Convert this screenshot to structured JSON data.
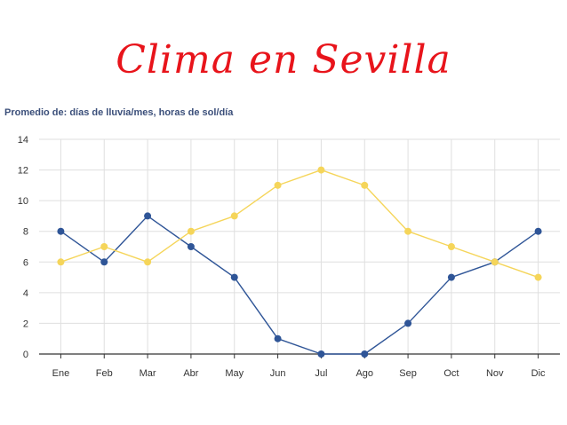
{
  "page": {
    "title": "Clima en Sevilla"
  },
  "colors": {
    "title": "#e8141b",
    "series_blue": "#2f5597",
    "series_yellow": "#f5d55a",
    "grid": "#dfdfdf",
    "axis": "#333333"
  },
  "chart_data": {
    "type": "line",
    "subtitle": "Promedio de: días de lluvia/mes, horas de sol/día",
    "categories": [
      "Ene",
      "Feb",
      "Mar",
      "Abr",
      "May",
      "Jun",
      "Jul",
      "Ago",
      "Sep",
      "Oct",
      "Nov",
      "Dic"
    ],
    "ylim": [
      0,
      14
    ],
    "yticks": [
      "0",
      "2",
      "4",
      "6",
      "8",
      "10",
      "12",
      "14"
    ],
    "grid": true,
    "legend": "none",
    "series": [
      {
        "color": "#2f5597",
        "values": [
          8,
          6,
          9,
          7,
          5,
          1,
          0,
          0,
          2,
          5,
          6,
          8
        ]
      },
      {
        "color": "#f5d55a",
        "values": [
          6,
          7,
          6,
          8,
          9,
          11,
          12,
          11,
          8,
          7,
          6,
          5
        ]
      }
    ]
  }
}
